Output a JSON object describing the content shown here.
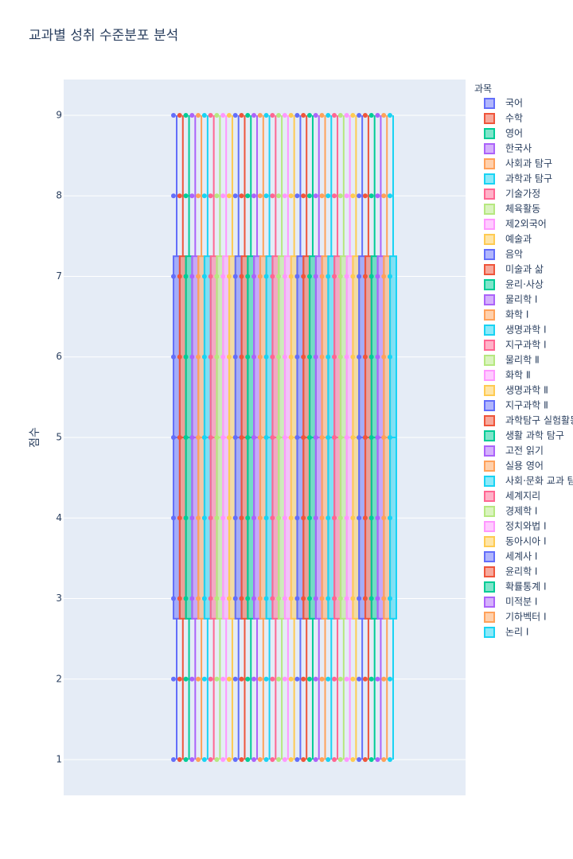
{
  "chart_data": {
    "type": "box",
    "title": "교과별 성취 수준분포 분석",
    "y_label": "점수",
    "legend_title": "과목",
    "ylim": [
      0.556,
      9.444
    ],
    "yticks": [
      1,
      2,
      3,
      4,
      5,
      6,
      7,
      8,
      9
    ],
    "grid": true,
    "series": [
      {
        "name": "국어",
        "color": "#636efa",
        "values": [
          1,
          2,
          3,
          4,
          5,
          6,
          7,
          8,
          9
        ],
        "q1": 2.75,
        "median": 5,
        "q3": 7.25
      },
      {
        "name": "수학",
        "color": "#ef553b",
        "values": [
          1,
          2,
          3,
          4,
          5,
          6,
          7,
          8,
          9
        ],
        "q1": 2.75,
        "median": 5,
        "q3": 7.25
      },
      {
        "name": "영어",
        "color": "#00cc96",
        "values": [
          1,
          2,
          3,
          4,
          5,
          6,
          7,
          8,
          9
        ],
        "q1": 2.75,
        "median": 5,
        "q3": 7.25
      },
      {
        "name": "한국사",
        "color": "#ab63fa",
        "values": [
          1,
          2,
          3,
          4,
          5,
          6,
          7,
          8,
          9
        ],
        "q1": 2.75,
        "median": 5,
        "q3": 7.25
      },
      {
        "name": "사회과 탐구",
        "color": "#ffa15a",
        "values": [
          1,
          2,
          3,
          4,
          5,
          6,
          7,
          8,
          9
        ],
        "q1": 2.75,
        "median": 5,
        "q3": 7.25
      },
      {
        "name": "과학과 탐구",
        "color": "#19d3f3",
        "values": [
          1,
          2,
          3,
          4,
          5,
          6,
          7,
          8,
          9
        ],
        "q1": 2.75,
        "median": 5,
        "q3": 7.25
      },
      {
        "name": "기술가정",
        "color": "#ff6692",
        "values": [
          1,
          2,
          3,
          4,
          5,
          6,
          7,
          8,
          9
        ],
        "q1": 2.75,
        "median": 5,
        "q3": 7.25
      },
      {
        "name": "체육활동",
        "color": "#b6e880",
        "values": [
          1,
          2,
          3,
          4,
          5,
          6,
          7,
          8,
          9
        ],
        "q1": 2.75,
        "median": 5,
        "q3": 7.25
      },
      {
        "name": "제2외국어",
        "color": "#ff97ff",
        "values": [
          1,
          2,
          3,
          4,
          5,
          6,
          7,
          8,
          9
        ],
        "q1": 2.75,
        "median": 5,
        "q3": 7.25
      },
      {
        "name": "예술과",
        "color": "#fecb52",
        "values": [
          1,
          2,
          3,
          4,
          5,
          6,
          7,
          8,
          9
        ],
        "q1": 2.75,
        "median": 5,
        "q3": 7.25
      },
      {
        "name": "음악",
        "color": "#636efa",
        "values": [
          1,
          2,
          3,
          4,
          5,
          6,
          7,
          8,
          9
        ],
        "q1": 2.75,
        "median": 5,
        "q3": 7.25
      },
      {
        "name": "미술과 삶",
        "color": "#ef553b",
        "values": [
          1,
          2,
          3,
          4,
          5,
          6,
          7,
          8,
          9
        ],
        "q1": 2.75,
        "median": 5,
        "q3": 7.25
      },
      {
        "name": "윤리·사상",
        "color": "#00cc96",
        "values": [
          1,
          2,
          3,
          4,
          5,
          6,
          7,
          8,
          9
        ],
        "q1": 2.75,
        "median": 5,
        "q3": 7.25
      },
      {
        "name": "물리학 Ⅰ",
        "color": "#ab63fa",
        "values": [
          1,
          2,
          3,
          4,
          5,
          6,
          7,
          8,
          9
        ],
        "q1": 2.75,
        "median": 5,
        "q3": 7.25
      },
      {
        "name": "화학 Ⅰ",
        "color": "#ffa15a",
        "values": [
          1,
          2,
          3,
          4,
          5,
          6,
          7,
          8,
          9
        ],
        "q1": 2.75,
        "median": 5,
        "q3": 7.25
      },
      {
        "name": "생명과학 Ⅰ",
        "color": "#19d3f3",
        "values": [
          1,
          2,
          3,
          4,
          5,
          6,
          7,
          8,
          9
        ],
        "q1": 2.75,
        "median": 5,
        "q3": 7.25
      },
      {
        "name": "지구과학 Ⅰ",
        "color": "#ff6692",
        "values": [
          1,
          2,
          3,
          4,
          5,
          6,
          7,
          8,
          9
        ],
        "q1": 2.75,
        "median": 5,
        "q3": 7.25
      },
      {
        "name": "물리학 Ⅱ",
        "color": "#b6e880",
        "values": [
          1,
          2,
          3,
          4,
          5,
          6,
          7,
          8,
          9
        ],
        "q1": 2.75,
        "median": 5,
        "q3": 7.25
      },
      {
        "name": "화학 Ⅱ",
        "color": "#ff97ff",
        "values": [
          1,
          2,
          3,
          4,
          5,
          6,
          7,
          8,
          9
        ],
        "q1": 2.75,
        "median": 5,
        "q3": 7.25
      },
      {
        "name": "생명과학 Ⅱ",
        "color": "#fecb52",
        "values": [
          1,
          2,
          3,
          4,
          5,
          6,
          7,
          8,
          9
        ],
        "q1": 2.75,
        "median": 5,
        "q3": 7.25
      },
      {
        "name": "지구과학 Ⅱ",
        "color": "#636efa",
        "values": [
          1,
          2,
          3,
          4,
          5,
          6,
          7,
          8,
          9
        ],
        "q1": 2.75,
        "median": 5,
        "q3": 7.25
      },
      {
        "name": "과학탐구 실험활동",
        "color": "#ef553b",
        "values": [
          1,
          2,
          3,
          4,
          5,
          6,
          7,
          8,
          9
        ],
        "q1": 2.75,
        "median": 5,
        "q3": 7.25
      },
      {
        "name": "생활 과학 탐구",
        "color": "#00cc96",
        "values": [
          1,
          2,
          3,
          4,
          5,
          6,
          7,
          8,
          9
        ],
        "q1": 2.75,
        "median": 5,
        "q3": 7.25
      },
      {
        "name": "고전 읽기",
        "color": "#ab63fa",
        "values": [
          1,
          2,
          3,
          4,
          5,
          6,
          7,
          8,
          9
        ],
        "q1": 2.75,
        "median": 5,
        "q3": 7.25
      },
      {
        "name": "실용 영어",
        "color": "#ffa15a",
        "values": [
          1,
          2,
          3,
          4,
          5,
          6,
          7,
          8,
          9
        ],
        "q1": 2.75,
        "median": 5,
        "q3": 7.25
      },
      {
        "name": "사회·문화 교과 탐구",
        "color": "#19d3f3",
        "values": [
          1,
          2,
          3,
          4,
          5,
          6,
          7,
          8,
          9
        ],
        "q1": 2.75,
        "median": 5,
        "q3": 7.25
      },
      {
        "name": "세계지리",
        "color": "#ff6692",
        "values": [
          1,
          2,
          3,
          4,
          5,
          6,
          7,
          8,
          9
        ],
        "q1": 2.75,
        "median": 5,
        "q3": 7.25
      },
      {
        "name": "경제학 Ⅰ",
        "color": "#b6e880",
        "values": [
          1,
          2,
          3,
          4,
          5,
          6,
          7,
          8,
          9
        ],
        "q1": 2.75,
        "median": 5,
        "q3": 7.25
      },
      {
        "name": "정치와법 Ⅰ",
        "color": "#ff97ff",
        "values": [
          1,
          2,
          3,
          4,
          5,
          6,
          7,
          8,
          9
        ],
        "q1": 2.75,
        "median": 5,
        "q3": 7.25
      },
      {
        "name": "동아시아 Ⅰ",
        "color": "#fecb52",
        "values": [
          1,
          2,
          3,
          4,
          5,
          6,
          7,
          8,
          9
        ],
        "q1": 2.75,
        "median": 5,
        "q3": 7.25
      },
      {
        "name": "세계사 Ⅰ",
        "color": "#636efa",
        "values": [
          1,
          2,
          3,
          4,
          5,
          6,
          7,
          8,
          9
        ],
        "q1": 2.75,
        "median": 5,
        "q3": 7.25
      },
      {
        "name": "윤리학 Ⅰ",
        "color": "#ef553b",
        "values": [
          1,
          2,
          3,
          4,
          5,
          6,
          7,
          8,
          9
        ],
        "q1": 2.75,
        "median": 5,
        "q3": 7.25
      },
      {
        "name": "확률통계 Ⅰ",
        "color": "#00cc96",
        "values": [
          1,
          2,
          3,
          4,
          5,
          6,
          7,
          8,
          9
        ],
        "q1": 2.75,
        "median": 5,
        "q3": 7.25
      },
      {
        "name": "미적분 Ⅰ",
        "color": "#ab63fa",
        "values": [
          1,
          2,
          3,
          4,
          5,
          6,
          7,
          8,
          9
        ],
        "q1": 2.75,
        "median": 5,
        "q3": 7.25
      },
      {
        "name": "기하벡터 Ⅰ",
        "color": "#ffa15a",
        "values": [
          1,
          2,
          3,
          4,
          5,
          6,
          7,
          8,
          9
        ],
        "q1": 2.75,
        "median": 5,
        "q3": 7.25
      },
      {
        "name": "논리 Ⅰ",
        "color": "#19d3f3",
        "values": [
          1,
          2,
          3,
          4,
          5,
          6,
          7,
          8,
          9
        ],
        "q1": 2.75,
        "median": 5,
        "q3": 7.25
      }
    ]
  }
}
